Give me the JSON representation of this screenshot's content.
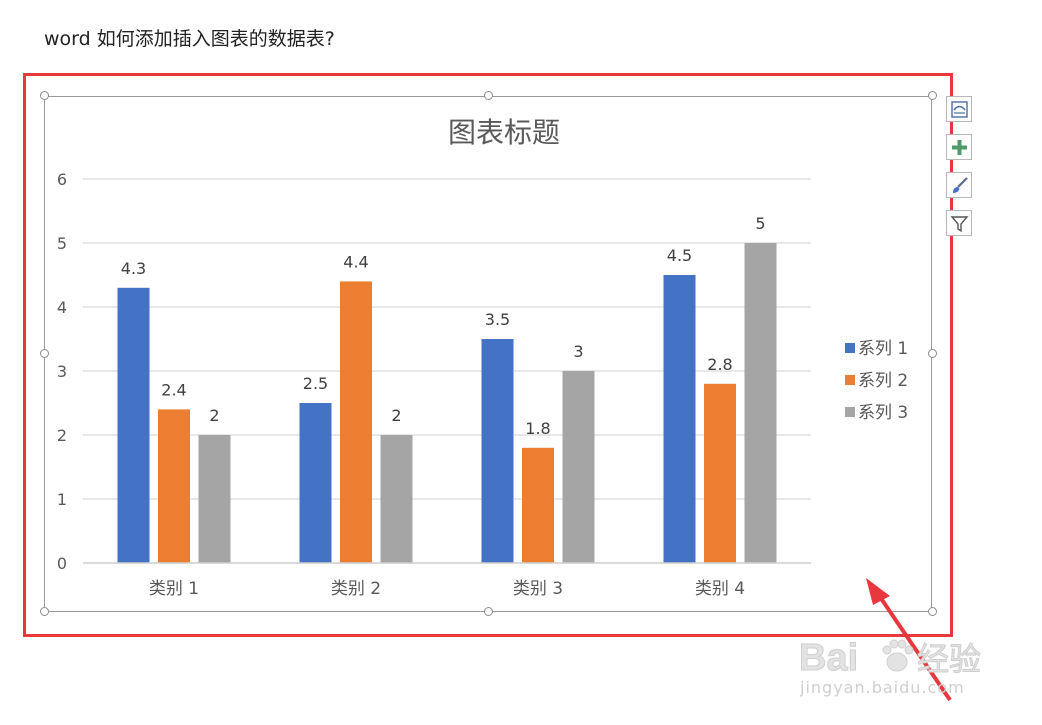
{
  "document": {
    "heading": "word 如何添加插入图表的数据表?"
  },
  "chart_tools": {
    "layout_icon": "layout-options-icon",
    "elements_icon": "chart-elements-plus-icon",
    "styles_icon": "chart-styles-brush-icon",
    "filter_icon": "chart-filter-icon"
  },
  "watermark": {
    "brand": "Bai",
    "brand_suffix": "经验",
    "url": "jingyan.baidu.com"
  },
  "colors": {
    "highlight": "#e8383d",
    "arrow": "#e8383d",
    "series_1": "#4472c4",
    "series_2": "#ed7d31",
    "series_3": "#a5a5a5"
  },
  "chart_data": {
    "type": "bar",
    "title": "图表标题",
    "categories": [
      "类别 1",
      "类别 2",
      "类别 3",
      "类别 4"
    ],
    "series": [
      {
        "name": "系列 1",
        "values": [
          4.3,
          2.5,
          3.5,
          4.5
        ]
      },
      {
        "name": "系列 2",
        "values": [
          2.4,
          4.4,
          1.8,
          2.8
        ]
      },
      {
        "name": "系列 3",
        "values": [
          2,
          2,
          3,
          5
        ]
      }
    ],
    "ylim": [
      0,
      6
    ],
    "yticks": [
      "0",
      "1",
      "2",
      "3",
      "4",
      "5",
      "6"
    ],
    "data_labels": [
      [
        "4.3",
        "2.5",
        "3.5",
        "4.5"
      ],
      [
        "2.4",
        "4.4",
        "1.8",
        "2.8"
      ],
      [
        "2",
        "2",
        "3",
        "5"
      ]
    ],
    "xlabel": "",
    "ylabel": "",
    "grid": true,
    "legend": "right"
  }
}
